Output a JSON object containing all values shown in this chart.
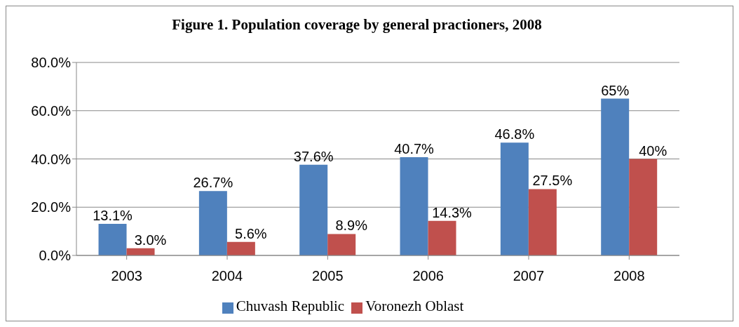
{
  "chart_data": {
    "type": "bar",
    "title": "Figure 1.  Population coverage by general practioners, 2008",
    "categories": [
      "2003",
      "2004",
      "2005",
      "2006",
      "2007",
      "2008"
    ],
    "series": [
      {
        "name": "Chuvash Republic",
        "color": "#4f81bd",
        "values": [
          13.1,
          26.7,
          37.6,
          40.7,
          46.8,
          65
        ],
        "value_labels": [
          "13.1%",
          "26.7%",
          "37.6%",
          "40.7%",
          "46.8%",
          "65%"
        ]
      },
      {
        "name": "Voronezh Oblast",
        "color": "#c0504d",
        "values": [
          3.0,
          5.6,
          8.9,
          14.3,
          27.5,
          40
        ],
        "value_labels": [
          "3.0%",
          "5.6%",
          "8.9%",
          "14.3%",
          "27.5%",
          "40%"
        ]
      }
    ],
    "ylim": [
      0,
      80
    ],
    "yticks": [
      {
        "value": 0,
        "label": "0.0%"
      },
      {
        "value": 20,
        "label": "20.0%"
      },
      {
        "value": 40,
        "label": "40.0%"
      },
      {
        "value": 60,
        "label": "60.0%"
      },
      {
        "value": 80,
        "label": "80.0%"
      }
    ],
    "grid": "y",
    "legend": "bottom"
  }
}
